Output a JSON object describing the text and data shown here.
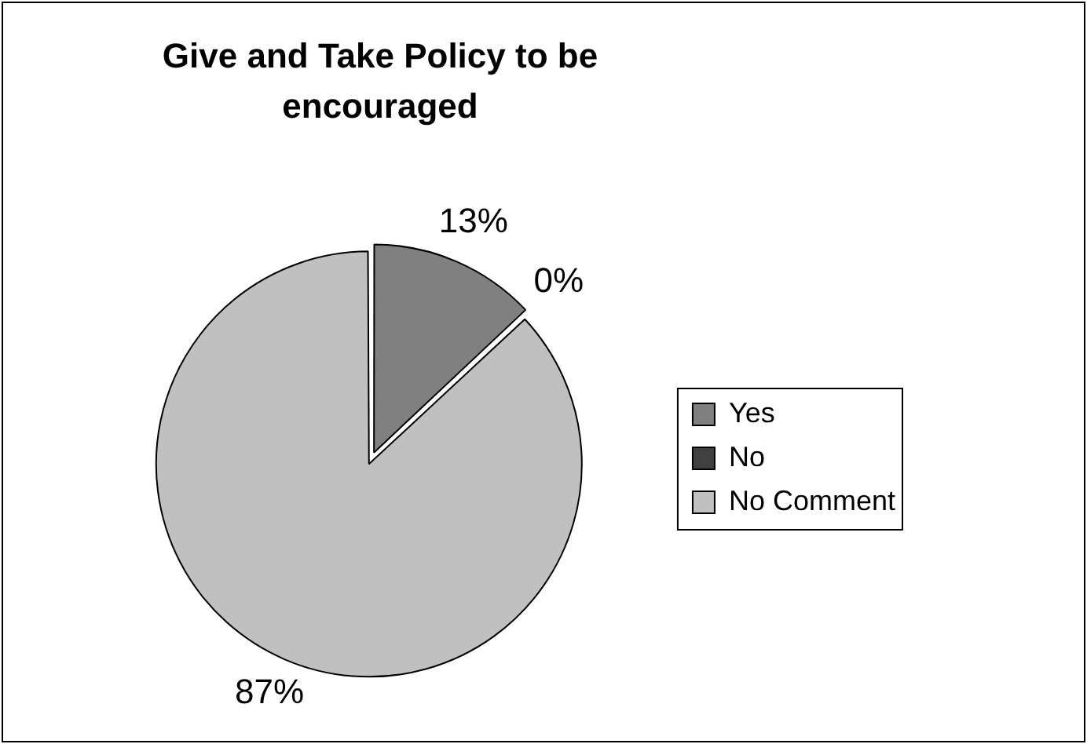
{
  "chart_data": {
    "type": "pie",
    "title": "Give and Take Policy to be encouraged",
    "categories": [
      "Yes",
      "No",
      "No Comment"
    ],
    "values": [
      13,
      0,
      87
    ],
    "colors": [
      "#808080",
      "#404040",
      "#c0c0c0"
    ],
    "value_labels": [
      "13%",
      "0%",
      "87%"
    ],
    "legend": "right"
  }
}
